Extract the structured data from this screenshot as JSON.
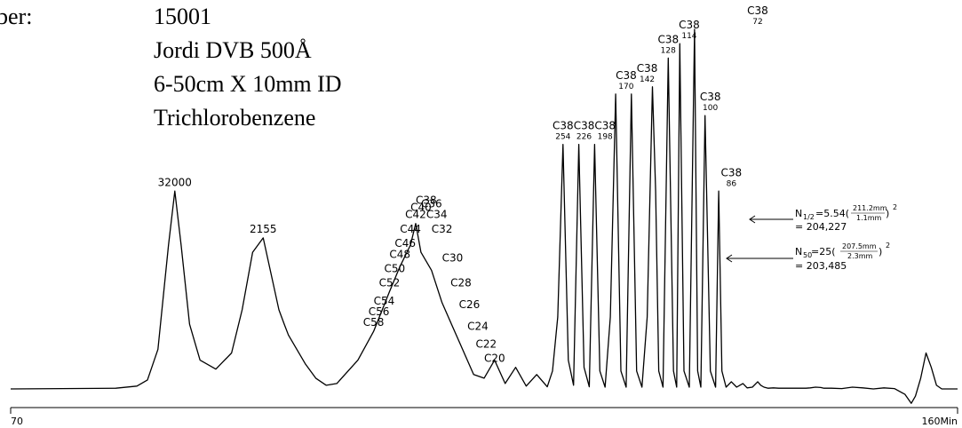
{
  "info": {
    "column_label": "ber:",
    "column_number": "15001",
    "column_type": "Jordi DVB 500Å",
    "column_dims": "6-50cm X 10mm ID",
    "solvent": "Trichlorobenzene"
  },
  "equations": {
    "n_half": {
      "lhs": "N",
      "sub": "1/2",
      "coef": "=5.54(",
      "num": "211.2mm",
      "den": "1.1mm",
      "close": ")",
      "exp": "2",
      "result": "= 204,227"
    },
    "n_50": {
      "lhs": "N",
      "sub": "50",
      "coef": "=25(",
      "num": "207.5mm",
      "den": "2.3mm",
      "close": ")",
      "exp": "2",
      "result": "= 203,485"
    }
  },
  "chart_data": {
    "type": "line",
    "title": "",
    "xlabel": "",
    "ylabel": "",
    "x_ticks": [
      "70",
      "160Min"
    ],
    "xlim": [
      70,
      160
    ],
    "ylim": [
      0,
      100
    ],
    "grid": false,
    "legend": "none",
    "series": [
      {
        "x": [
          70.0,
          80.0,
          82.0,
          83.0,
          84.0,
          85.0,
          85.6,
          86.2,
          87.0,
          88.0,
          89.5,
          91.0,
          92.0,
          93.0,
          94.0,
          95.5,
          96.0,
          96.4,
          97.0,
          98.0,
          99.0,
          100.0,
          101.0,
          103.0,
          104.5,
          106.0,
          107.0,
          108.0,
          108.5,
          109.0,
          110.0,
          111.0,
          112.5,
          114.0,
          115.0,
          116.0,
          117.0,
          118.0,
          119.0,
          120.0,
          121.0,
          121.5,
          122.0,
          122.5,
          123.0,
          123.5,
          124.0,
          124.5,
          125.0,
          125.5,
          126.0,
          126.5,
          127.0,
          127.5,
          128.0,
          128.5,
          129.0,
          129.5,
          130.0,
          130.5,
          131.0,
          131.3,
          131.6,
          132.0,
          132.5,
          133.0,
          133.3,
          133.6,
          134.0,
          134.5,
          135.0,
          135.3,
          135.6,
          136.0,
          136.5,
          137.0,
          137.3,
          137.6,
          138.0,
          138.5,
          139.0,
          139.3,
          139.6,
          140.0,
          140.5,
          141.0,
          141.3,
          141.6,
          142.0,
          142.5,
          143.0,
          143.3,
          143.6,
          144.0,
          144.5,
          145.0,
          145.3,
          145.6,
          146.0,
          146.5,
          147.0,
          147.3,
          147.6,
          148.0,
          149.0,
          150.0,
          151.0,
          152.0,
          153.0,
          154.0,
          155.0,
          155.6,
          156.0,
          156.5,
          157.0,
          157.5,
          158.0,
          158.5,
          159.0,
          160.0
        ],
        "y": [
          0.0,
          0.2,
          0.8,
          2.5,
          11.0,
          40.0,
          55.0,
          40.0,
          18.0,
          8.0,
          5.5,
          10.0,
          22.0,
          38.0,
          42.0,
          22.0,
          18.0,
          15.0,
          12.0,
          7.0,
          3.0,
          1.0,
          1.5,
          8.0,
          16.0,
          27.0,
          34.0,
          40.0,
          46.0,
          38.0,
          33.0,
          24.0,
          14.0,
          4.0,
          3.0,
          8.0,
          1.5,
          6.0,
          0.8,
          4.0,
          0.6,
          5.0,
          20.0,
          68.0,
          8.0,
          1.0,
          68.0,
          6.0,
          0.6,
          68.0,
          5.0,
          0.5,
          20.0,
          82.0,
          5.0,
          0.5,
          82.0,
          5.0,
          0.5,
          20.0,
          84.0,
          55.0,
          5.0,
          0.5,
          92.0,
          5.0,
          0.5,
          96.0,
          5.0,
          0.5,
          100.0,
          5.0,
          0.5,
          76.0,
          5.0,
          0.5,
          55.0,
          5.0,
          0.5,
          2.0,
          0.5,
          1.0,
          1.5,
          0.3,
          0.5,
          2.0,
          1.0,
          0.5,
          0.2,
          0.3,
          0.2,
          0.2,
          0.2,
          0.2,
          0.2,
          0.2,
          0.2,
          0.2,
          0.3,
          0.5,
          0.4,
          0.2,
          0.2,
          0.2,
          0.1,
          0.5,
          0.3,
          0.0,
          0.3,
          0.1,
          -1.5,
          -4.0,
          -2.0,
          3.0,
          10.0,
          6.0,
          1.0,
          0.0,
          0.0,
          0.0
        ]
      }
    ],
    "peak_labels": [
      {
        "text": "32000",
        "x": 85.6,
        "y": 55.0
      },
      {
        "text": "2155",
        "x": 94.0,
        "y": 42.0
      },
      {
        "text": "C58",
        "x": 104.5,
        "y": 16.0
      },
      {
        "text": "C56",
        "x": 105.0,
        "y": 19.0
      },
      {
        "text": "C54",
        "x": 105.5,
        "y": 22.0
      },
      {
        "text": "C52",
        "x": 106.0,
        "y": 27.0
      },
      {
        "text": "C50",
        "x": 106.5,
        "y": 31.0
      },
      {
        "text": "C48",
        "x": 107.0,
        "y": 35.0
      },
      {
        "text": "C46",
        "x": 107.5,
        "y": 38.0
      },
      {
        "text": "C44",
        "x": 108.0,
        "y": 42.0
      },
      {
        "text": "C42",
        "x": 108.5,
        "y": 46.0
      },
      {
        "text": "C40",
        "x": 109.0,
        "y": 48.0
      },
      {
        "text": "C38",
        "x": 109.5,
        "y": 50.0
      },
      {
        "text": "C36",
        "x": 110.0,
        "y": 49.0
      },
      {
        "text": "C34",
        "x": 110.5,
        "y": 46.0
      },
      {
        "text": "C32",
        "x": 111.0,
        "y": 42.0
      },
      {
        "text": "C30",
        "x": 112.0,
        "y": 34.0
      },
      {
        "text": "C28",
        "x": 112.8,
        "y": 27.0
      },
      {
        "text": "C26",
        "x": 113.6,
        "y": 21.0
      },
      {
        "text": "C24",
        "x": 114.4,
        "y": 15.0
      },
      {
        "text": "C22",
        "x": 115.2,
        "y": 10.0
      },
      {
        "text": "C20",
        "x": 116.0,
        "y": 6.0
      },
      {
        "text": "C38 254",
        "x": 122.5,
        "y": 68.0
      },
      {
        "text": "C38 226",
        "x": 124.5,
        "y": 68.0
      },
      {
        "text": "C38 198",
        "x": 126.5,
        "y": 68.0
      },
      {
        "text": "C38 170",
        "x": 128.5,
        "y": 82.0
      },
      {
        "text": "C38 142",
        "x": 130.5,
        "y": 84.0
      },
      {
        "text": "C38 128",
        "x": 132.5,
        "y": 92.0
      },
      {
        "text": "C38 114",
        "x": 134.5,
        "y": 96.0
      },
      {
        "text": "C38 100",
        "x": 136.5,
        "y": 76.0
      },
      {
        "text": "C38 86",
        "x": 138.5,
        "y": 55.0
      },
      {
        "text": "C38 72",
        "x": 141.0,
        "y": 100.0
      }
    ]
  }
}
